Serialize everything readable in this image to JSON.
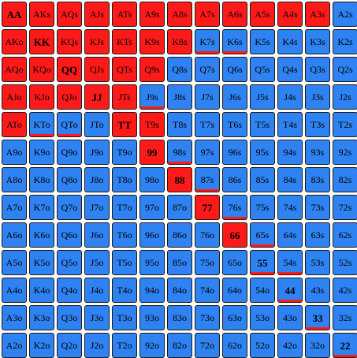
{
  "colors": {
    "raise": "#ff1a1a",
    "fold": "#2f82f2",
    "border": "#1a1a1a"
  },
  "rows": [
    [
      {
        "label": "AA",
        "a": "raise"
      },
      {
        "label": "AKs",
        "a": "raise"
      },
      {
        "label": "AQs",
        "a": "raise"
      },
      {
        "label": "AJs",
        "a": "raise"
      },
      {
        "label": "ATs",
        "a": "raise"
      },
      {
        "label": "A9s",
        "a": "raise"
      },
      {
        "label": "A8s",
        "a": "raise"
      },
      {
        "label": "A7s",
        "a": "raise"
      },
      {
        "label": "A6s",
        "a": "raise"
      },
      {
        "label": "A5s",
        "a": "raise"
      },
      {
        "label": "A4s",
        "a": "raise"
      },
      {
        "label": "A3s",
        "a": "raise"
      },
      {
        "label": "A2s",
        "a": "fold"
      }
    ],
    [
      {
        "label": "AKo",
        "a": "raise"
      },
      {
        "label": "KK",
        "a": "raise"
      },
      {
        "label": "KQs",
        "a": "raise"
      },
      {
        "label": "KJs",
        "a": "raise"
      },
      {
        "label": "KTs",
        "a": "raise"
      },
      {
        "label": "K9s",
        "a": "raise"
      },
      {
        "label": "K8s",
        "a": "raise"
      },
      {
        "label": "K7s",
        "a": "fold",
        "partial": "raise"
      },
      {
        "label": "K6s",
        "a": "fold",
        "partial": "raise"
      },
      {
        "label": "K5s",
        "a": "fold"
      },
      {
        "label": "K4s",
        "a": "fold"
      },
      {
        "label": "K3s",
        "a": "fold"
      },
      {
        "label": "K2s",
        "a": "fold"
      }
    ],
    [
      {
        "label": "AQo",
        "a": "raise"
      },
      {
        "label": "KQo",
        "a": "raise"
      },
      {
        "label": "QQ",
        "a": "raise"
      },
      {
        "label": "QJs",
        "a": "raise"
      },
      {
        "label": "QTs",
        "a": "raise"
      },
      {
        "label": "Q9s",
        "a": "raise"
      },
      {
        "label": "Q8s",
        "a": "fold"
      },
      {
        "label": "Q7s",
        "a": "fold"
      },
      {
        "label": "Q6s",
        "a": "fold"
      },
      {
        "label": "Q5s",
        "a": "fold"
      },
      {
        "label": "Q4s",
        "a": "fold"
      },
      {
        "label": "Q3s",
        "a": "fold"
      },
      {
        "label": "Q2s",
        "a": "fold"
      }
    ],
    [
      {
        "label": "AJo",
        "a": "raise"
      },
      {
        "label": "KJo",
        "a": "raise"
      },
      {
        "label": "QJo",
        "a": "raise"
      },
      {
        "label": "JJ",
        "a": "raise"
      },
      {
        "label": "JTs",
        "a": "raise"
      },
      {
        "label": "J9s",
        "a": "fold",
        "partial": "raise"
      },
      {
        "label": "J8s",
        "a": "fold"
      },
      {
        "label": "J7s",
        "a": "fold"
      },
      {
        "label": "J6s",
        "a": "fold"
      },
      {
        "label": "J5s",
        "a": "fold"
      },
      {
        "label": "J4s",
        "a": "fold"
      },
      {
        "label": "J3s",
        "a": "fold"
      },
      {
        "label": "J2s",
        "a": "fold"
      }
    ],
    [
      {
        "label": "ATo",
        "a": "raise"
      },
      {
        "label": "KTo",
        "a": "fold",
        "partial": "raise"
      },
      {
        "label": "QTo",
        "a": "fold",
        "partial": "raise"
      },
      {
        "label": "JTo",
        "a": "fold"
      },
      {
        "label": "TT",
        "a": "raise"
      },
      {
        "label": "T9s",
        "a": "raise"
      },
      {
        "label": "T8s",
        "a": "fold"
      },
      {
        "label": "T7s",
        "a": "fold"
      },
      {
        "label": "T6s",
        "a": "fold"
      },
      {
        "label": "T5s",
        "a": "fold"
      },
      {
        "label": "T4s",
        "a": "fold"
      },
      {
        "label": "T3s",
        "a": "fold"
      },
      {
        "label": "T2s",
        "a": "fold"
      }
    ],
    [
      {
        "label": "A9o",
        "a": "fold"
      },
      {
        "label": "K9o",
        "a": "fold"
      },
      {
        "label": "Q9o",
        "a": "fold"
      },
      {
        "label": "J9o",
        "a": "fold"
      },
      {
        "label": "T9o",
        "a": "fold"
      },
      {
        "label": "99",
        "a": "raise"
      },
      {
        "label": "98s",
        "a": "fold",
        "partial": "raise"
      },
      {
        "label": "97s",
        "a": "fold"
      },
      {
        "label": "96s",
        "a": "fold"
      },
      {
        "label": "95s",
        "a": "fold"
      },
      {
        "label": "94s",
        "a": "fold"
      },
      {
        "label": "93s",
        "a": "fold"
      },
      {
        "label": "92s",
        "a": "fold"
      }
    ],
    [
      {
        "label": "A8o",
        "a": "fold"
      },
      {
        "label": "K8o",
        "a": "fold"
      },
      {
        "label": "Q8o",
        "a": "fold"
      },
      {
        "label": "J8o",
        "a": "fold"
      },
      {
        "label": "T8o",
        "a": "fold"
      },
      {
        "label": "98o",
        "a": "fold"
      },
      {
        "label": "88",
        "a": "raise"
      },
      {
        "label": "87s",
        "a": "fold",
        "partial": "raise"
      },
      {
        "label": "86s",
        "a": "fold"
      },
      {
        "label": "85s",
        "a": "fold"
      },
      {
        "label": "84s",
        "a": "fold"
      },
      {
        "label": "83s",
        "a": "fold"
      },
      {
        "label": "82s",
        "a": "fold"
      }
    ],
    [
      {
        "label": "A7o",
        "a": "fold"
      },
      {
        "label": "K7o",
        "a": "fold"
      },
      {
        "label": "Q7o",
        "a": "fold"
      },
      {
        "label": "J7o",
        "a": "fold"
      },
      {
        "label": "T7o",
        "a": "fold"
      },
      {
        "label": "97o",
        "a": "fold"
      },
      {
        "label": "87o",
        "a": "fold"
      },
      {
        "label": "77",
        "a": "raise"
      },
      {
        "label": "76s",
        "a": "fold",
        "partial": "raise"
      },
      {
        "label": "75s",
        "a": "fold"
      },
      {
        "label": "74s",
        "a": "fold"
      },
      {
        "label": "73s",
        "a": "fold"
      },
      {
        "label": "72s",
        "a": "fold"
      }
    ],
    [
      {
        "label": "A6o",
        "a": "fold"
      },
      {
        "label": "K6o",
        "a": "fold"
      },
      {
        "label": "Q6o",
        "a": "fold"
      },
      {
        "label": "J6o",
        "a": "fold"
      },
      {
        "label": "T6o",
        "a": "fold"
      },
      {
        "label": "96o",
        "a": "fold"
      },
      {
        "label": "86o",
        "a": "fold"
      },
      {
        "label": "76o",
        "a": "fold"
      },
      {
        "label": "66",
        "a": "raise"
      },
      {
        "label": "65s",
        "a": "fold",
        "partial": "raise"
      },
      {
        "label": "64s",
        "a": "fold"
      },
      {
        "label": "63s",
        "a": "fold"
      },
      {
        "label": "62s",
        "a": "fold"
      }
    ],
    [
      {
        "label": "A5o",
        "a": "fold"
      },
      {
        "label": "K5o",
        "a": "fold"
      },
      {
        "label": "Q5o",
        "a": "fold"
      },
      {
        "label": "J5o",
        "a": "fold"
      },
      {
        "label": "T5o",
        "a": "fold"
      },
      {
        "label": "95o",
        "a": "fold"
      },
      {
        "label": "85o",
        "a": "fold"
      },
      {
        "label": "75o",
        "a": "fold"
      },
      {
        "label": "65o",
        "a": "fold"
      },
      {
        "label": "55",
        "a": "fold",
        "partial": "raise"
      },
      {
        "label": "54s",
        "a": "fold",
        "partial": "raise"
      },
      {
        "label": "53s",
        "a": "fold"
      },
      {
        "label": "52s",
        "a": "fold"
      }
    ],
    [
      {
        "label": "A4o",
        "a": "fold"
      },
      {
        "label": "K4o",
        "a": "fold"
      },
      {
        "label": "Q4o",
        "a": "fold"
      },
      {
        "label": "J4o",
        "a": "fold"
      },
      {
        "label": "T4o",
        "a": "fold"
      },
      {
        "label": "94o",
        "a": "fold"
      },
      {
        "label": "84o",
        "a": "fold"
      },
      {
        "label": "74o",
        "a": "fold"
      },
      {
        "label": "64o",
        "a": "fold"
      },
      {
        "label": "54o",
        "a": "fold"
      },
      {
        "label": "44",
        "a": "fold",
        "partial": "raise"
      },
      {
        "label": "43s",
        "a": "fold"
      },
      {
        "label": "42s",
        "a": "fold"
      }
    ],
    [
      {
        "label": "A3o",
        "a": "fold"
      },
      {
        "label": "K3o",
        "a": "fold"
      },
      {
        "label": "Q3o",
        "a": "fold"
      },
      {
        "label": "J3o",
        "a": "fold"
      },
      {
        "label": "T3o",
        "a": "fold"
      },
      {
        "label": "93o",
        "a": "fold"
      },
      {
        "label": "83o",
        "a": "fold"
      },
      {
        "label": "73o",
        "a": "fold"
      },
      {
        "label": "63o",
        "a": "fold"
      },
      {
        "label": "53o",
        "a": "fold"
      },
      {
        "label": "43o",
        "a": "fold"
      },
      {
        "label": "33",
        "a": "fold",
        "partial": "raise"
      },
      {
        "label": "32s",
        "a": "fold"
      }
    ],
    [
      {
        "label": "A2o",
        "a": "fold"
      },
      {
        "label": "K2o",
        "a": "fold"
      },
      {
        "label": "Q2o",
        "a": "fold"
      },
      {
        "label": "J2o",
        "a": "fold"
      },
      {
        "label": "T2o",
        "a": "fold"
      },
      {
        "label": "92o",
        "a": "fold"
      },
      {
        "label": "82o",
        "a": "fold"
      },
      {
        "label": "72o",
        "a": "fold"
      },
      {
        "label": "62o",
        "a": "fold"
      },
      {
        "label": "52o",
        "a": "fold"
      },
      {
        "label": "42o",
        "a": "fold"
      },
      {
        "label": "32o",
        "a": "fold"
      },
      {
        "label": "22",
        "a": "fold",
        "partial": "raise"
      }
    ]
  ]
}
